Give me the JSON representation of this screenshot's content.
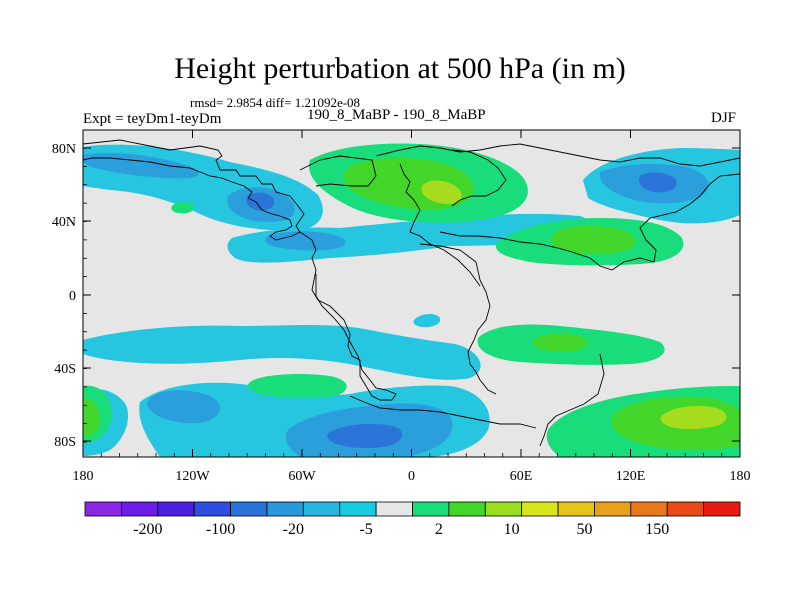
{
  "title": "Height perturbation at 500 hPa (in m)",
  "stats": "rmsd= 2.9854 diff= 1.21092e-08",
  "left_label": "Expt = teyDm1-teyDm",
  "center_label": "190_8_MaBP - 190_8_MaBP",
  "right_label": "DJF",
  "lat_labels": [
    "80N",
    "40N",
    "0",
    "40S",
    "80S"
  ],
  "lon_labels": [
    "180",
    "120W",
    "60W",
    "0",
    "60E",
    "120E",
    "180"
  ],
  "colorbar": {
    "colors": [
      "#8c27e6",
      "#6a1ee6",
      "#4b1ee0",
      "#2f4de0",
      "#2a73d8",
      "#2a99dc",
      "#26b6e0",
      "#18cbe0",
      "#e6e6e6",
      "#19dc7a",
      "#43d62a",
      "#9adc1e",
      "#d6e61a",
      "#e6c419",
      "#e8a11a",
      "#e8781a",
      "#e84a18",
      "#e81a14"
    ],
    "labels": [
      "-200",
      "-100",
      "-20",
      "-5",
      "2",
      "10",
      "50",
      "150"
    ]
  },
  "map_colors": {
    "background": "#e6e6e6",
    "cyan": "#26c6e0",
    "blue": "#2a9fdc",
    "dark_blue": "#2b74d8",
    "green": "#19dc7a",
    "light_green": "#43d62a",
    "yellow_green": "#a6dc1e",
    "coast": "#000000"
  }
}
